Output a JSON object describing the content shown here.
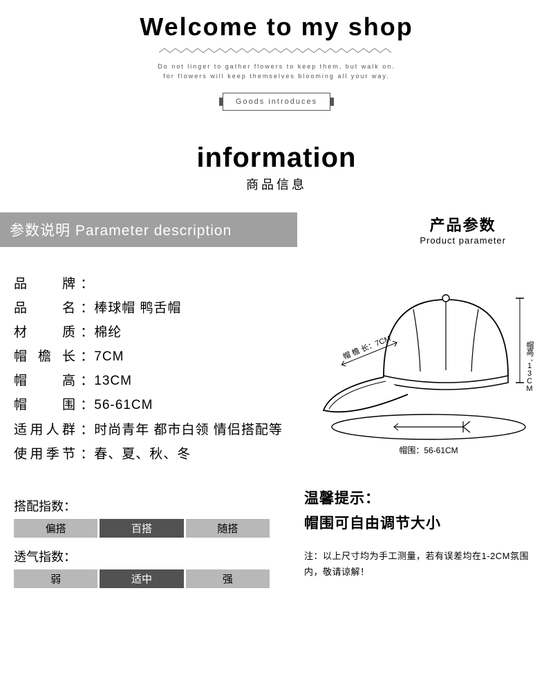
{
  "header": {
    "welcome": "Welcome to my shop",
    "tagline1": "Do not linger to gather flowers to keep them, but walk on.",
    "tagline2": "for flowers will keep themselves blooming all your way.",
    "goods_label": "Goods introduces"
  },
  "info": {
    "title_en": "information",
    "title_cn": "商品信息"
  },
  "section_bar": {
    "cn": "参数说明",
    "en": "Parameter description"
  },
  "product_param": {
    "cn": "产品参数",
    "en": "Product parameter"
  },
  "specs": [
    {
      "label": "品　　牌",
      "value": ""
    },
    {
      "label": "品　　名",
      "value": "棒球帽 鸭舌帽"
    },
    {
      "label": "材　　质",
      "value": "棉纶"
    },
    {
      "label": "帽 檐 长",
      "value": "7CM"
    },
    {
      "label": "帽　　高",
      "value": "13CM"
    },
    {
      "label": "帽　　围",
      "value": "56-61CM"
    },
    {
      "label": "适用人群",
      "value": "时尚青年 都市白领 情侣搭配等"
    },
    {
      "label": "使用季节",
      "value": "春、夏、秋、冬"
    }
  ],
  "diagram": {
    "brim_label": "帽 檐 长：7CM",
    "height_label": "帽高：13CM",
    "circ_label": "帽围：56-61CM",
    "line_color": "#000000",
    "fill_color": "#ffffff"
  },
  "indices": [
    {
      "title": "搭配指数：",
      "options": [
        "偏搭",
        "百搭",
        "随搭"
      ],
      "selected": 1
    },
    {
      "title": "透气指数：",
      "options": [
        "弱",
        "适中",
        "强"
      ],
      "selected": 1
    }
  ],
  "tips": {
    "title": "温馨提示：",
    "main": "帽围可自由调节大小",
    "note": "注：以上尺寸均为手工测量，若有误差均在1-2CM氛围内，敬请谅解！"
  },
  "colors": {
    "bar_bg": "#a0a0a0",
    "bar_fg": "#ffffff",
    "idx_bg": "#b8b8b8",
    "idx_sel_bg": "#525252"
  }
}
